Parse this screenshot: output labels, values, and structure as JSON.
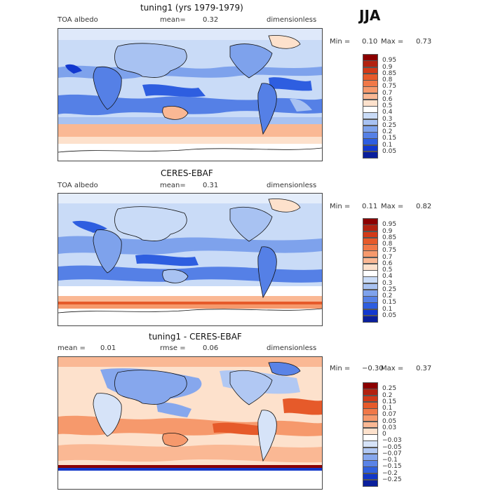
{
  "season": "JJA",
  "panels": [
    {
      "title": "tuning1 (yrs 1979-1979)",
      "left": "TOA albedo",
      "mean_label": "mean=",
      "mean_value": "0.32",
      "right": "dimensionless",
      "min_label": "Min =",
      "min_value": "0.10",
      "max_label": "Max =",
      "max_value": "0.73",
      "levels": [
        "0.95",
        "0.9",
        "0.85",
        "0.8",
        "0.75",
        "0.7",
        "0.6",
        "0.5",
        "0.4",
        "0.3",
        "0.25",
        "0.2",
        "0.15",
        "0.1",
        "0.05"
      ],
      "colors": [
        "#8b0000",
        "#b22210",
        "#d23a18",
        "#e65a2a",
        "#f07848",
        "#f6996c",
        "#fab894",
        "#fde1cc",
        "#ffffff",
        "#c9dbf7",
        "#a8c2f2",
        "#7ea2ec",
        "#5580e6",
        "#2e5ee0",
        "#1238cf",
        "#0a1f9c"
      ]
    },
    {
      "title": "CERES-EBAF",
      "left": "TOA albedo",
      "mean_label": "mean=",
      "mean_value": "0.31",
      "right": "dimensionless",
      "min_label": "Min =",
      "min_value": "0.11",
      "max_label": "Max =",
      "max_value": "0.82",
      "levels": [
        "0.95",
        "0.9",
        "0.85",
        "0.8",
        "0.75",
        "0.7",
        "0.6",
        "0.5",
        "0.4",
        "0.3",
        "0.25",
        "0.2",
        "0.15",
        "0.1",
        "0.05"
      ],
      "colors": [
        "#8b0000",
        "#b22210",
        "#d23a18",
        "#e65a2a",
        "#f07848",
        "#f6996c",
        "#fab894",
        "#fde1cc",
        "#ffffff",
        "#c9dbf7",
        "#a8c2f2",
        "#7ea2ec",
        "#5580e6",
        "#2e5ee0",
        "#1238cf",
        "#0a1f9c"
      ]
    },
    {
      "title": "tuning1 - CERES-EBAF",
      "left_label": "mean =",
      "left_value": "0.01",
      "mean_label": "rmse =",
      "mean_value": "0.06",
      "right": "dimensionless",
      "min_label": "Min =",
      "min_value": "−0.30",
      "max_label": "Max =",
      "max_value": "0.37",
      "levels": [
        "0.25",
        "0.2",
        "0.15",
        "0.1",
        "0.07",
        "0.05",
        "0.03",
        "0",
        "−0.03",
        "−0.05",
        "−0.07",
        "−0.1",
        "−0.15",
        "−0.2",
        "−0.25"
      ],
      "colors": [
        "#8b0000",
        "#b22210",
        "#d23a18",
        "#e65a2a",
        "#f07848",
        "#f6996c",
        "#fab894",
        "#fde1cc",
        "#ffffff",
        "#d6e3f8",
        "#b1c8f3",
        "#86a7ed",
        "#5a83e6",
        "#2f5fde",
        "#1136c8",
        "#0a1f9c"
      ]
    }
  ]
}
